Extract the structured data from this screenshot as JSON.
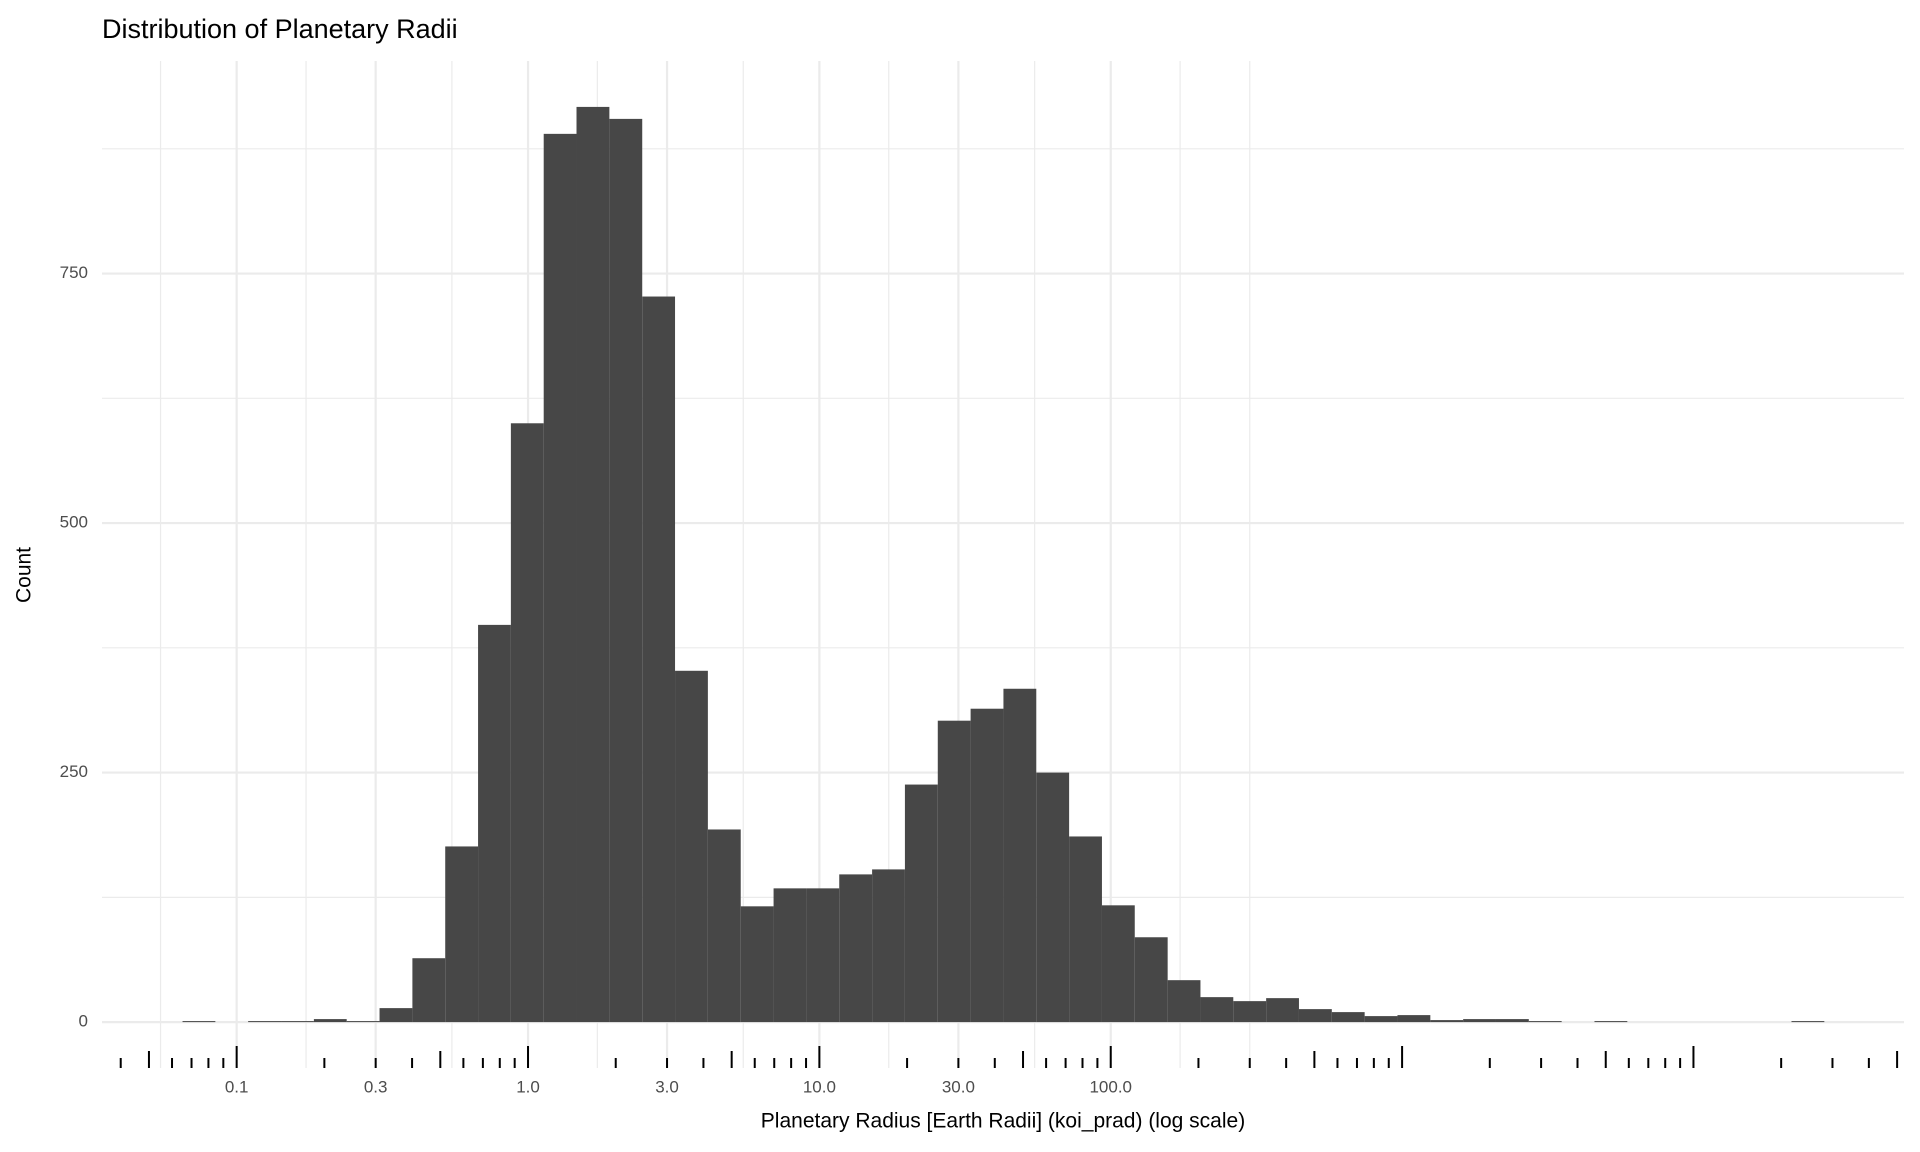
{
  "chart_data": {
    "type": "histogram",
    "title": "Distribution of Planetary Radii",
    "xlabel": "Planetary Radius [Earth Radii] (koi_prad) (log scale)",
    "ylabel": "Count",
    "xscale": "log",
    "bins": [
      0.0652,
      0.0845,
      0.1095,
      0.142,
      0.1841,
      0.2386,
      0.3093,
      0.401,
      0.5198,
      0.6738,
      0.8733,
      1.132,
      1.467,
      1.902,
      2.466,
      3.196,
      4.143,
      5.371,
      6.963,
      9.026,
      11.7,
      15.17,
      19.66,
      25.49,
      33.04,
      42.83,
      55.52,
      71.97,
      93.29,
      120.9,
      156.8,
      203.2,
      263.4,
      341.5,
      442.6,
      573.8,
      743.8,
      964,
      1250,
      1620,
      2100,
      2722,
      3529,
      4574,
      5929,
      7686,
      9963,
      12915,
      16741,
      21701,
      28130
    ],
    "values": [
      1,
      0,
      1,
      1,
      3,
      1,
      14,
      64,
      176,
      398,
      600,
      890,
      917,
      905,
      727,
      352,
      193,
      116,
      134,
      134,
      148,
      153,
      238,
      302,
      314,
      334,
      250,
      186,
      117,
      85,
      42,
      25,
      21,
      24,
      13,
      10,
      6,
      7,
      2,
      3,
      3,
      1,
      0,
      1,
      0,
      0,
      0,
      0,
      0,
      1
    ],
    "color": "#474747",
    "xlim": [
      0.0345,
      52800
    ],
    "ylim": [
      -46,
      963
    ],
    "xticks": [
      0.1,
      0.3,
      {
        "value": 1,
        "label": "1.0"
      },
      {
        "value": 3,
        "label": "3.0"
      },
      {
        "value": 10,
        "label": "10.0"
      },
      {
        "value": 30,
        "label": "30.0"
      },
      {
        "value": 100,
        "label": "100.0"
      }
    ],
    "yticks": [
      0,
      250,
      500,
      750
    ],
    "x_grid_minor": [
      0.0548,
      0.173,
      0.548,
      1.73,
      5.48,
      17.3,
      54.8,
      173,
      300
    ],
    "y_grid_minor": [
      125,
      375,
      625,
      875
    ],
    "grid": true,
    "log_ticks": [
      0.04,
      0.05,
      0.06,
      0.07,
      0.08,
      0.09,
      0.1,
      0.2,
      0.3,
      0.4,
      0.5,
      0.6,
      0.7,
      0.8,
      0.9,
      1,
      2,
      3,
      4,
      5,
      6,
      7,
      8,
      9,
      10,
      20,
      30,
      40,
      50,
      60,
      70,
      80,
      90,
      100,
      200,
      300,
      400,
      500,
      600,
      700,
      800,
      900,
      1000,
      2000,
      3000,
      4000,
      5000,
      6000,
      7000,
      8000,
      9000,
      10000,
      20000,
      30000,
      40000,
      50000
    ]
  }
}
